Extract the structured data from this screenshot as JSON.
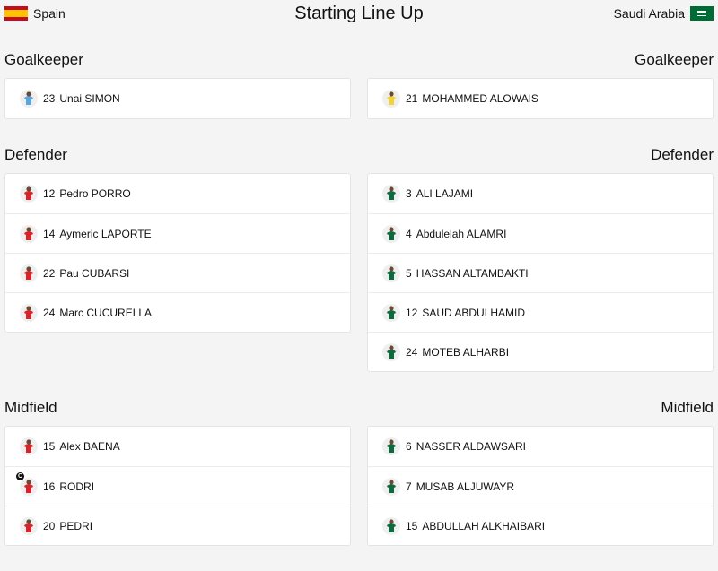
{
  "header": {
    "home_team": "Spain",
    "title": "Starting Line Up",
    "away_team": "Saudi Arabia"
  },
  "sections": [
    {
      "position": "Goalkeeper",
      "home": [
        {
          "number": 23,
          "name": "Unai SIMON"
        }
      ],
      "away": [
        {
          "number": 21,
          "name": "MOHAMMED ALOWAIS"
        }
      ]
    },
    {
      "position": "Defender",
      "home": [
        {
          "number": 12,
          "name": "Pedro PORRO"
        },
        {
          "number": 14,
          "name": "Aymeric LAPORTE"
        },
        {
          "number": 22,
          "name": "Pau CUBARSI"
        },
        {
          "number": 24,
          "name": "Marc CUCURELLA"
        }
      ],
      "away": [
        {
          "number": 3,
          "name": "ALI LAJAMI"
        },
        {
          "number": 4,
          "name": "Abdulelah ALAMRI"
        },
        {
          "number": 5,
          "name": "HASSAN ALTAMBAKTI"
        },
        {
          "number": 12,
          "name": "SAUD ABDULHAMID"
        },
        {
          "number": 24,
          "name": "MOTEB ALHARBI"
        }
      ]
    },
    {
      "position": "Midfield",
      "home": [
        {
          "number": 15,
          "name": "Alex BAENA"
        },
        {
          "number": 16,
          "name": "RODRI",
          "captain": "C"
        },
        {
          "number": 20,
          "name": "PEDRI"
        }
      ],
      "away": [
        {
          "number": 6,
          "name": "NASSER ALDAWSARI"
        },
        {
          "number": 7,
          "name": "MUSAB ALJUWAYR"
        },
        {
          "number": 15,
          "name": "ABDULLAH ALKHAIBARI"
        }
      ]
    }
  ]
}
